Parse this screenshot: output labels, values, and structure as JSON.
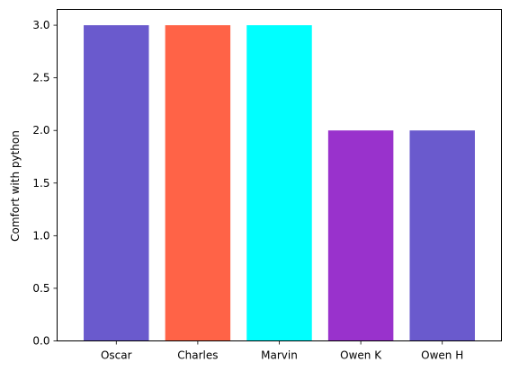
{
  "chart_data": {
    "type": "bar",
    "title": "",
    "xlabel": "",
    "ylabel": "Comfort with python",
    "categories": [
      "Oscar",
      "Charles",
      "Marvin",
      "Owen K",
      "Owen H"
    ],
    "values": [
      3,
      3,
      3,
      2,
      2
    ],
    "colors": [
      "#6a5acd",
      "#ff6347",
      "#00ffff",
      "#9932cc",
      "#6a5acd"
    ],
    "ylim": [
      0,
      3.15
    ],
    "yticks": [
      0.0,
      0.5,
      1.0,
      1.5,
      2.0,
      2.5,
      3.0
    ],
    "ytick_labels": [
      "0.0",
      "0.5",
      "1.0",
      "1.5",
      "2.0",
      "2.5",
      "3.0"
    ],
    "grid": false,
    "legend": "none"
  }
}
